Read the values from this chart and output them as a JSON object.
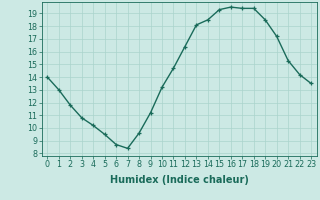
{
  "x": [
    0,
    1,
    2,
    3,
    4,
    5,
    6,
    7,
    8,
    9,
    10,
    11,
    12,
    13,
    14,
    15,
    16,
    17,
    18,
    19,
    20,
    21,
    22,
    23
  ],
  "y": [
    14,
    13,
    11.8,
    10.8,
    10.2,
    9.5,
    8.7,
    8.4,
    9.6,
    11.2,
    13.2,
    14.7,
    16.4,
    18.1,
    18.5,
    19.3,
    19.5,
    19.4,
    19.4,
    18.5,
    17.2,
    15.3,
    14.2,
    13.5
  ],
  "line_color": "#1a6b5a",
  "marker": "+",
  "marker_size": 3.5,
  "bg_color": "#cce9e4",
  "grid_color": "#aad4cc",
  "xlabel": "Humidex (Indice chaleur)",
  "ylabel_ticks": [
    8,
    9,
    10,
    11,
    12,
    13,
    14,
    15,
    16,
    17,
    18,
    19
  ],
  "ylim": [
    7.8,
    19.9
  ],
  "xlim": [
    -0.5,
    23.5
  ],
  "xtick_labels": [
    "0",
    "1",
    "2",
    "3",
    "4",
    "5",
    "6",
    "7",
    "8",
    "9",
    "10",
    "11",
    "12",
    "13",
    "14",
    "15",
    "16",
    "17",
    "18",
    "19",
    "20",
    "21",
    "22",
    "23"
  ],
  "label_color": "#1a6b5a",
  "tick_color": "#1a6b5a",
  "font_size_label": 7.0,
  "font_size_tick": 5.8,
  "linewidth": 1.0,
  "marker_edge_width": 0.9
}
